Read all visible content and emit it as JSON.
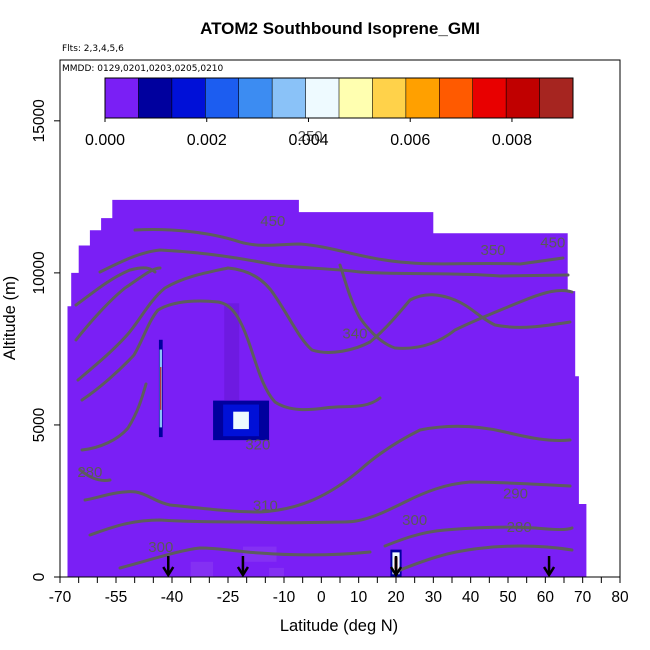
{
  "chart_data": {
    "type": "heatmap",
    "title": "ATOM2 Southbound Isoprene_GMI",
    "subtitle_flights": "Flts: 2,3,4,5,6",
    "subtitle_dates": "MMDD: 0129,0201,0203,0205,0210",
    "xlabel": "Latitude (deg N)",
    "ylabel": "Altitude (m)",
    "xlim": [
      -70,
      80
    ],
    "ylim": [
      0,
      17000
    ],
    "x_ticks": [
      -70,
      -65,
      -60,
      -55,
      -50,
      -45,
      -40,
      -35,
      -30,
      -25,
      -20,
      -15,
      -10,
      -5,
      0,
      5,
      10,
      15,
      20,
      25,
      30,
      35,
      40,
      45,
      50,
      55,
      60,
      65,
      70,
      75,
      80
    ],
    "x_tick_labels": [
      "-70",
      "",
      "",
      "-55",
      "",
      "",
      "-40",
      "",
      "",
      "-25",
      "",
      "",
      "-10",
      "",
      "0",
      "",
      "10",
      "",
      "20",
      "",
      "30",
      "",
      "40",
      "",
      "50",
      "",
      "60",
      "",
      "70",
      "",
      "80"
    ],
    "y_ticks": [
      0,
      5000,
      10000,
      15000
    ],
    "y_tick_labels": [
      "0",
      "5000",
      "10000",
      "15000"
    ],
    "background_value": 0.0,
    "field_extent": {
      "x": [
        -68,
        71
      ],
      "y": [
        0,
        12400
      ]
    },
    "enhancements": [
      {
        "x": [
          -43.5,
          -42.5
        ],
        "y": [
          4600,
          7800
        ],
        "peak": 0.008
      },
      {
        "x": [
          -29,
          -14
        ],
        "y": [
          4500,
          5800
        ],
        "peak": 0.004
      },
      {
        "x": [
          18.5,
          21.5
        ],
        "y": [
          0,
          900
        ],
        "peak": 0.009
      }
    ],
    "colorbar": {
      "min": 0.0,
      "max": 0.0092,
      "ticks": [
        0.0,
        0.002,
        0.004,
        0.006,
        0.008
      ],
      "tick_labels": [
        "0.000",
        "0.002",
        "0.004",
        "0.006",
        "0.008"
      ],
      "colors": [
        "#7a1ff5",
        "#00009e",
        "#0010d8",
        "#1c5df0",
        "#3c8cf2",
        "#8ac2f8",
        "#eefaff",
        "#ffffb0",
        "#ffd24a",
        "#ffa000",
        "#ff5a00",
        "#e80000",
        "#c00000",
        "#a62520"
      ]
    },
    "contours": [
      {
        "label": "250",
        "label_at": [
          -3,
          14500
        ]
      },
      {
        "label": "280",
        "label_at": [
          -62,
          3450
        ]
      },
      {
        "label": "280",
        "label_at": [
          53,
          1650
        ]
      },
      {
        "label": "290",
        "label_at": [
          52,
          2750
        ]
      },
      {
        "label": "300",
        "label_at": [
          -43,
          980
        ]
      },
      {
        "label": "300",
        "label_at": [
          25,
          1870
        ]
      },
      {
        "label": "310",
        "label_at": [
          -15,
          2350
        ]
      },
      {
        "label": "320",
        "label_at": [
          -17,
          4350
        ]
      },
      {
        "label": "340",
        "label_at": [
          9,
          8000
        ]
      },
      {
        "label": "350",
        "label_at": [
          46,
          10750
        ]
      },
      {
        "label": "450",
        "label_at": [
          -13,
          11700
        ]
      },
      {
        "label": "450",
        "label_at": [
          62,
          11000
        ]
      }
    ],
    "arrows_at_latitude": [
      -41,
      -21,
      20,
      61
    ]
  }
}
